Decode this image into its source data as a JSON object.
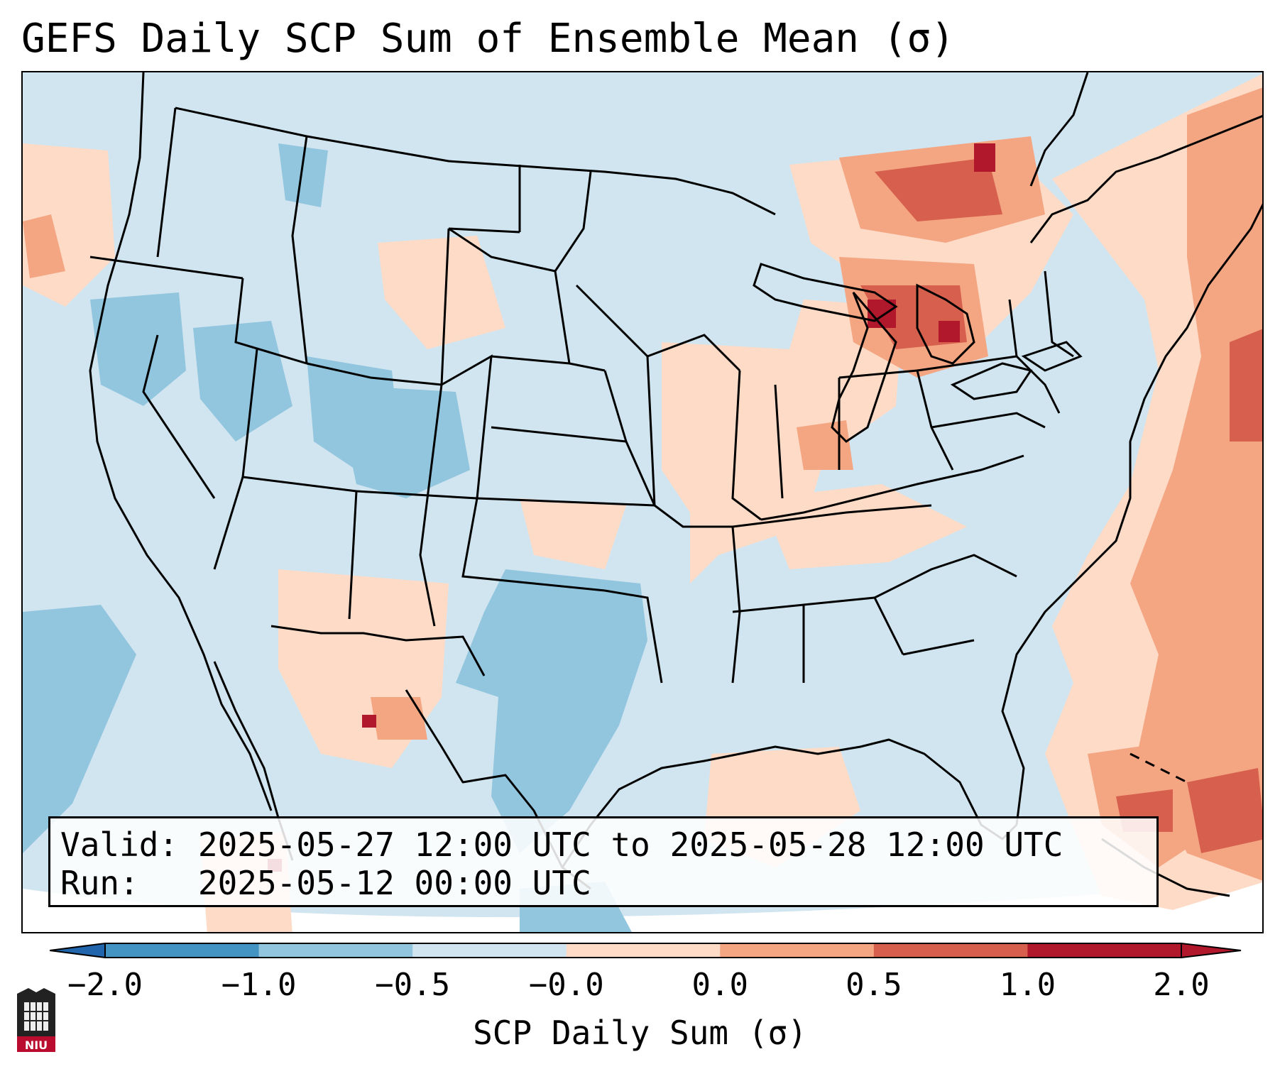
{
  "title": "GEFS Daily SCP Sum of Ensemble Mean (σ)",
  "info": {
    "valid_label": "Valid:",
    "valid_value": "2025-05-27 12:00 UTC to 2025-05-28 12:00 UTC",
    "run_label": "Run:",
    "run_value": "2025-05-12 00:00 UTC"
  },
  "colorbar": {
    "label": "SCP Daily Sum (σ)",
    "ticks": [
      "−2.0",
      "−1.0",
      "−0.5",
      "−0.0",
      "0.0",
      "0.5",
      "1.0",
      "2.0"
    ],
    "colors": [
      "#4393c3",
      "#92c5de",
      "#d1e5f0",
      "#f7f7f7",
      "#fddbc7",
      "#f4a582",
      "#d6604d",
      "#b2182b"
    ],
    "under_color": "#2166ac",
    "over_color": "#67001f"
  },
  "map": {
    "projection": "Lambert Conformal",
    "region": "CONUS",
    "background_color": "#d1e5f0",
    "features": [
      "state-borders",
      "coastlines",
      "country-borders"
    ]
  },
  "logo": {
    "icon": "university-shield-icon",
    "text": "NIU",
    "color": "#ba0c2f"
  }
}
